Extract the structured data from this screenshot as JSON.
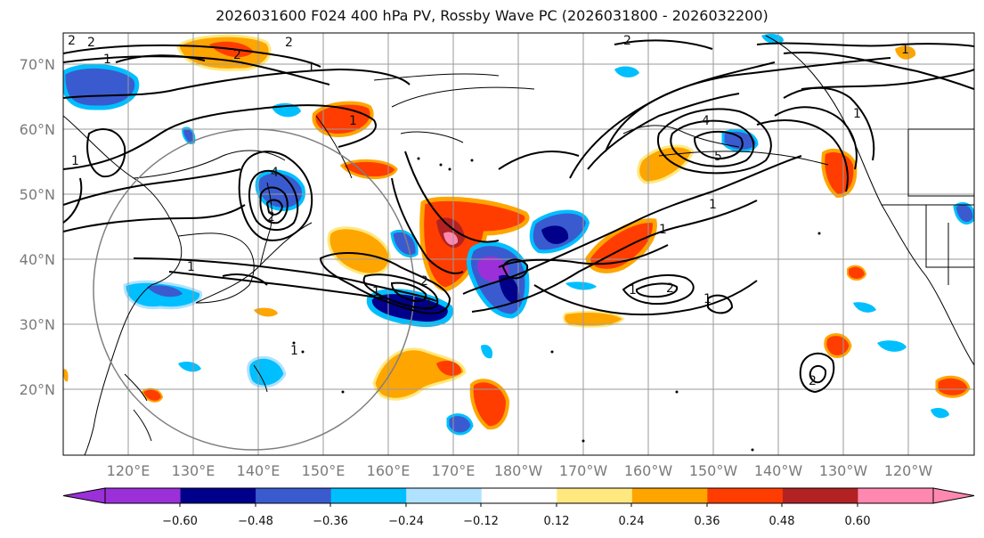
{
  "title": "2026031600 F024 400 hPa PV, Rossby Wave PC (2026031800 - 2026032200)",
  "lat_labels": [
    "20°N",
    "30°N",
    "40°N",
    "50°N",
    "60°N",
    "70°N"
  ],
  "lon_labels": [
    "120°E",
    "130°E",
    "140°E",
    "150°E",
    "160°E",
    "170°E",
    "180°W",
    "170°W",
    "160°W",
    "150°W",
    "140°W",
    "130°W",
    "120°W"
  ],
  "colorbar": {
    "tick_labels": [
      "−0.60",
      "−0.48",
      "−0.36",
      "−0.24",
      "−0.12",
      "0.12",
      "0.24",
      "0.36",
      "0.48",
      "0.60"
    ],
    "colors": [
      "#9b30d9",
      "#00008b",
      "#3a5bcf",
      "#00bfff",
      "#b0e2ff",
      "#ffffff",
      "#ffe97f",
      "#ffa500",
      "#ff3d00",
      "#b22222",
      "#ff88b0"
    ]
  },
  "contour_labels": [
    "2",
    "1",
    "2",
    "2",
    "1",
    "1",
    "2",
    "4",
    "1",
    "2",
    "1",
    "1",
    "2",
    "4",
    "5",
    "1",
    "1",
    "2",
    "1",
    "1",
    "2",
    "1",
    "1",
    "1",
    "1",
    "2"
  ]
}
